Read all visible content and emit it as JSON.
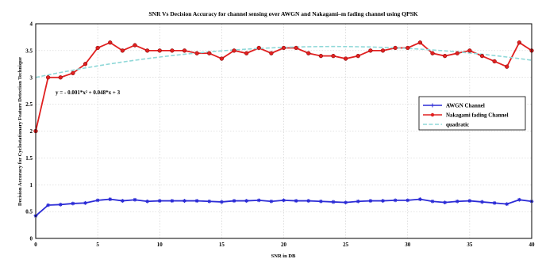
{
  "chart_data": {
    "type": "line",
    "title": "SNR Vs Decision Accuracy for channel sensing over AWGN and Nakagami–m fading channel using QPSK",
    "xlabel": "SNR in DB",
    "ylabel": "Decision Accuracy for Cyclostationary Feature Detection Technique",
    "xlim": [
      0,
      40
    ],
    "ylim": [
      0,
      4
    ],
    "xticks": [
      0,
      5,
      10,
      15,
      20,
      25,
      30,
      35,
      40
    ],
    "yticks": [
      0,
      0.5,
      1,
      1.5,
      2,
      2.5,
      3,
      3.5,
      4
    ],
    "grid": true,
    "legend_position": "right",
    "x": [
      0,
      1,
      2,
      3,
      4,
      5,
      6,
      7,
      8,
      9,
      10,
      11,
      12,
      13,
      14,
      15,
      16,
      17,
      18,
      19,
      20,
      21,
      22,
      23,
      24,
      25,
      26,
      27,
      28,
      29,
      30,
      31,
      32,
      33,
      34,
      35,
      36,
      37,
      38,
      39,
      40
    ],
    "series": [
      {
        "name": "AWGN Channel",
        "color": "#2b2bd6",
        "marker": "star",
        "values": [
          0.42,
          0.62,
          0.63,
          0.65,
          0.66,
          0.71,
          0.73,
          0.7,
          0.72,
          0.69,
          0.7,
          0.7,
          0.7,
          0.7,
          0.69,
          0.68,
          0.7,
          0.7,
          0.71,
          0.69,
          0.71,
          0.7,
          0.7,
          0.69,
          0.68,
          0.67,
          0.69,
          0.7,
          0.7,
          0.71,
          0.71,
          0.73,
          0.69,
          0.67,
          0.69,
          0.7,
          0.68,
          0.66,
          0.64,
          0.72,
          0.69
        ]
      },
      {
        "name": "Nakagami fading Channel",
        "color": "#e02020",
        "marker": "circle",
        "values": [
          2.0,
          3.0,
          3.0,
          3.08,
          3.25,
          3.55,
          3.65,
          3.5,
          3.6,
          3.5,
          3.5,
          3.5,
          3.5,
          3.45,
          3.45,
          3.35,
          3.5,
          3.45,
          3.55,
          3.45,
          3.55,
          3.55,
          3.45,
          3.4,
          3.4,
          3.35,
          3.4,
          3.5,
          3.5,
          3.55,
          3.55,
          3.65,
          3.45,
          3.4,
          3.45,
          3.5,
          3.4,
          3.3,
          3.2,
          3.65,
          3.5
        ]
      },
      {
        "name": "quadratic",
        "color": "#8fd8d8",
        "fit": {
          "a": -0.001,
          "b": 0.048,
          "c": 3
        },
        "x_range": [
          0,
          40
        ]
      }
    ],
    "annotation": "y = - 0.001*x² + 0.048*x + 3"
  }
}
